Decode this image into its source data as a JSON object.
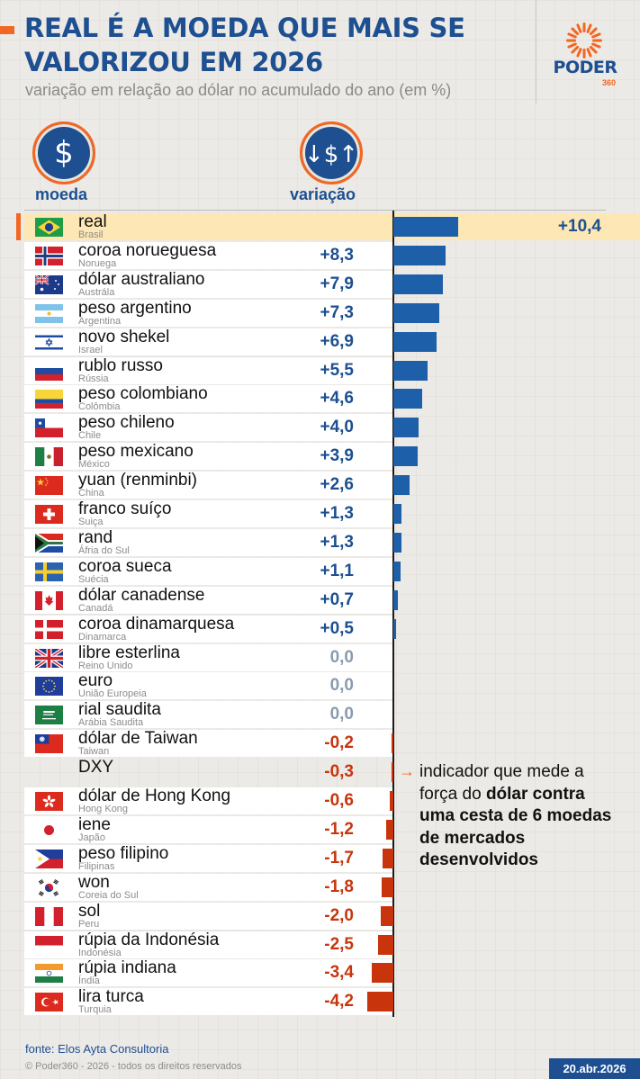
{
  "header": {
    "title_line1": "REAL É A MOEDA QUE MAIS SE",
    "title_line2": "VALORIZOU EM 2026",
    "subtitle": "variação em relação ao dólar no acumulado do ano (em %)"
  },
  "logo": {
    "word": "PODER",
    "number": "360"
  },
  "columns": {
    "currency": "moeda",
    "change": "variação"
  },
  "icons": {
    "currency": "dollar-sign-icon",
    "change": "up-down-dollar-icon"
  },
  "colors": {
    "positive": "#1d5fa8",
    "negative": "#c8350d",
    "zero": "#8a9bb0",
    "highlight": "#fde7b4",
    "accent": "#f26722",
    "brand": "#1d4f91"
  },
  "chart_data": {
    "type": "bar",
    "orientation": "horizontal",
    "categories": [
      "real",
      "coroa norueguesa",
      "dólar australiano",
      "peso argentino",
      "novo shekel",
      "rublo russo",
      "peso colombiano",
      "peso chileno",
      "peso mexicano",
      "yuan (renminbi)",
      "franco suíço",
      "rand",
      "coroa sueca",
      "dólar canadense",
      "coroa dinamarquesa",
      "libre esterlina",
      "euro",
      "rial saudita",
      "dólar de Taiwan",
      "DXY",
      "dólar de Hong Kong",
      "iene",
      "peso filipino",
      "won",
      "sol",
      "rúpia da Indonésia",
      "rúpia indiana",
      "lira turca"
    ],
    "values": [
      10.4,
      8.3,
      7.9,
      7.3,
      6.9,
      5.5,
      4.6,
      4.0,
      3.9,
      2.6,
      1.3,
      1.3,
      1.1,
      0.7,
      0.5,
      0.0,
      0.0,
      0.0,
      -0.2,
      -0.3,
      -0.6,
      -1.2,
      -1.7,
      -1.8,
      -2.0,
      -2.5,
      -3.4,
      -4.2
    ],
    "xlim": [
      -4.2,
      10.4
    ]
  },
  "rows": [
    {
      "name": "real",
      "country": "Brasil",
      "value": "+10,4",
      "flag": "brazil-flag-icon"
    },
    {
      "name": "coroa norueguesa",
      "country": "Noruega",
      "value": "+8,3",
      "flag": "norway-flag-icon"
    },
    {
      "name": "dólar australiano",
      "country": "Austrála",
      "value": "+7,9",
      "flag": "australia-flag-icon"
    },
    {
      "name": "peso argentino",
      "country": "Argentina",
      "value": "+7,3",
      "flag": "argentina-flag-icon"
    },
    {
      "name": "novo shekel",
      "country": "Israel",
      "value": "+6,9",
      "flag": "israel-flag-icon"
    },
    {
      "name": "rublo russo",
      "country": "Rússia",
      "value": "+5,5",
      "flag": "russia-flag-icon"
    },
    {
      "name": "peso colombiano",
      "country": "Colômbia",
      "value": "+4,6",
      "flag": "colombia-flag-icon"
    },
    {
      "name": "peso chileno",
      "country": "Chile",
      "value": "+4,0",
      "flag": "chile-flag-icon"
    },
    {
      "name": "peso mexicano",
      "country": "México",
      "value": "+3,9",
      "flag": "mexico-flag-icon"
    },
    {
      "name": "yuan (renminbi)",
      "country": "China",
      "value": "+2,6",
      "flag": "china-flag-icon"
    },
    {
      "name": "franco suíço",
      "country": "Suiça",
      "value": "+1,3",
      "flag": "switzerland-flag-icon"
    },
    {
      "name": "rand",
      "country": "Áfria do Sul",
      "value": "+1,3",
      "flag": "south-africa-flag-icon"
    },
    {
      "name": "coroa sueca",
      "country": "Suécia",
      "value": "+1,1",
      "flag": "sweden-flag-icon"
    },
    {
      "name": "dólar canadense",
      "country": "Canadá",
      "value": "+0,7",
      "flag": "canada-flag-icon"
    },
    {
      "name": "coroa dinamarquesa",
      "country": "Dinamarca",
      "value": "+0,5",
      "flag": "denmark-flag-icon"
    },
    {
      "name": "libre esterlina",
      "country": "Reino Unido",
      "value": "0,0",
      "flag": "uk-flag-icon"
    },
    {
      "name": "euro",
      "country": "União Europeia",
      "value": "0,0",
      "flag": "eu-flag-icon"
    },
    {
      "name": "rial saudita",
      "country": "Arábia Saudita",
      "value": "0,0",
      "flag": "saudi-flag-icon"
    },
    {
      "name": "dólar de Taiwan",
      "country": "Taiwan",
      "value": "-0,2",
      "flag": "taiwan-flag-icon"
    },
    {
      "name": "DXY",
      "country": "",
      "value": "-0,3",
      "flag": ""
    },
    {
      "name": "dólar de Hong Kong",
      "country": "Hong Kong",
      "value": "-0,6",
      "flag": "hong-kong-flag-icon"
    },
    {
      "name": "iene",
      "country": "Japão",
      "value": "-1,2",
      "flag": "japan-flag-icon"
    },
    {
      "name": "peso filipino",
      "country": "Filipinas",
      "value": "-1,7",
      "flag": "philippines-flag-icon"
    },
    {
      "name": "won",
      "country": "Coreia do Sul",
      "value": "-1,8",
      "flag": "south-korea-flag-icon"
    },
    {
      "name": "sol",
      "country": "Peru",
      "value": "-2,0",
      "flag": "peru-flag-icon"
    },
    {
      "name": "rúpia da Indonésia",
      "country": "Indonésia",
      "value": "-2,5",
      "flag": "indonesia-flag-icon"
    },
    {
      "name": "rúpia indiana",
      "country": "Índia",
      "value": "-3,4",
      "flag": "india-flag-icon"
    },
    {
      "name": "lira turca",
      "country": "Turquia",
      "value": "-4,2",
      "flag": "turkey-flag-icon"
    }
  ],
  "note": {
    "arrow": "→",
    "text_plain": "indicador que mede a força do ",
    "text_bold": "dólar contra uma cesta de 6 moedas de mercados desenvolvidos"
  },
  "footer": {
    "source": "fonte: Elos Ayta Consultoria",
    "copyright": "© Poder360 - 2026 - todos os direitos reservados",
    "date": "20.abr.2026"
  }
}
